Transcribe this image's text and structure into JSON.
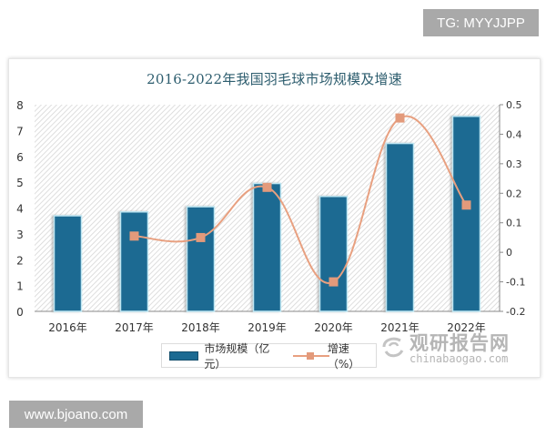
{
  "watermarks": {
    "top_right": "TG: MYYJJPP",
    "bottom_left": "www.bjoano.com",
    "source_cn": "观研报告网",
    "source_en": "chinabaogao.com"
  },
  "colors": {
    "bar": "#1b6a92",
    "bar_outline": "#bfe6f2",
    "line": "#e8a080",
    "marker": "#e39a7b",
    "title": "#2d5d6e"
  },
  "chart_data": {
    "type": "bar",
    "title": "2016-2022年我国羽毛球市场规模及增速",
    "categories": [
      "2016年",
      "2017年",
      "2018年",
      "2019年",
      "2020年",
      "2021年",
      "2022年"
    ],
    "series": [
      {
        "name": "市场规模（亿元）",
        "type": "bar",
        "axis": "left",
        "values": [
          3.7,
          3.85,
          4.05,
          4.95,
          4.45,
          6.5,
          7.55
        ]
      },
      {
        "name": "增速（%）",
        "type": "line",
        "axis": "right",
        "smooth": true,
        "values": [
          null,
          0.055,
          0.05,
          0.22,
          -0.1,
          0.455,
          0.16
        ]
      }
    ],
    "left_axis": {
      "min": 0,
      "max": 8,
      "ticks": [
        "0",
        "1",
        "2",
        "3",
        "4",
        "5",
        "6",
        "7",
        "8"
      ]
    },
    "right_axis": {
      "min": -0.2,
      "max": 0.5,
      "ticks": [
        "-0.2",
        "-0.1",
        "0",
        "0.1",
        "0.2",
        "0.3",
        "0.4",
        "0.5"
      ]
    },
    "xlabel": "",
    "ylabel": "",
    "legend_position": "bottom",
    "grid": false,
    "background": "hatched"
  },
  "legend": {
    "bar_label": "市场规模（亿元）",
    "line_label": "增速（%）"
  }
}
